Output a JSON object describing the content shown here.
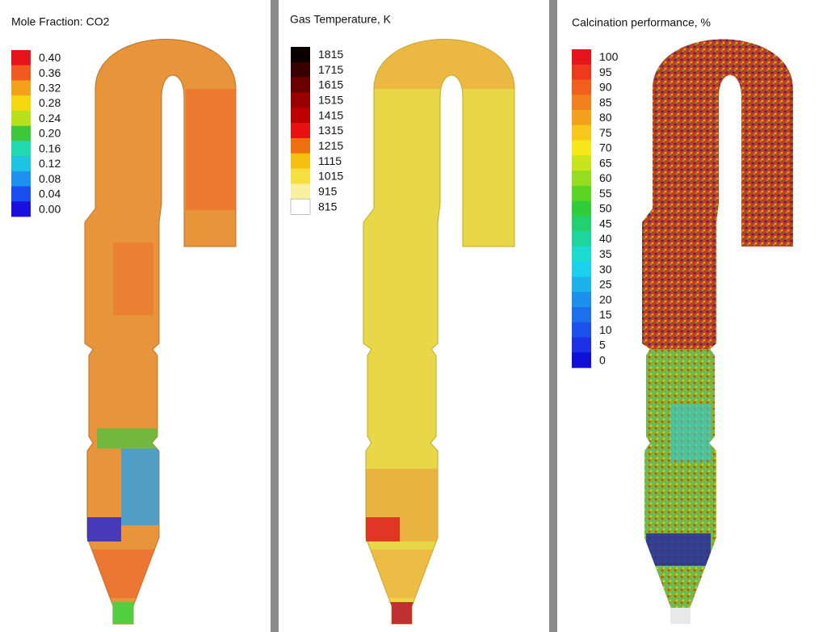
{
  "panels": [
    {
      "title": "Mole Fraction: CO2",
      "legend": [
        {
          "label": "0.40",
          "color": "#e8141c"
        },
        {
          "label": "0.36",
          "color": "#f05a1e"
        },
        {
          "label": "0.32",
          "color": "#f3a01d"
        },
        {
          "label": "0.28",
          "color": "#f5d80f"
        },
        {
          "label": "0.24",
          "color": "#b8e01c"
        },
        {
          "label": "0.20",
          "color": "#3cc83c"
        },
        {
          "label": "0.16",
          "color": "#22d8b0"
        },
        {
          "label": "0.12",
          "color": "#1cc4e4"
        },
        {
          "label": "0.08",
          "color": "#1e90f0"
        },
        {
          "label": "0.04",
          "color": "#1a4ef0"
        },
        {
          "label": "0.00",
          "color": "#1a10e0"
        }
      ]
    },
    {
      "title": "Gas Temperature, K",
      "legend": [
        {
          "label": "1815",
          "color": "#0a0000"
        },
        {
          "label": "1715",
          "color": "#3a0000"
        },
        {
          "label": "1615",
          "color": "#6a0000"
        },
        {
          "label": "1515",
          "color": "#9a0000"
        },
        {
          "label": "1415",
          "color": "#c00000"
        },
        {
          "label": "1315",
          "color": "#e81010"
        },
        {
          "label": "1215",
          "color": "#f07010"
        },
        {
          "label": "1115",
          "color": "#f5c010"
        },
        {
          "label": "1015",
          "color": "#f5e040"
        },
        {
          "label": "915",
          "color": "#f8f0a0"
        },
        {
          "label": "815",
          "color": "#ffffff"
        }
      ]
    },
    {
      "title": "Calcination performance, %",
      "legend": [
        {
          "label": "100",
          "color": "#e8141c"
        },
        {
          "label": "95",
          "color": "#ee3a1c"
        },
        {
          "label": "90",
          "color": "#f0601c"
        },
        {
          "label": "85",
          "color": "#f2801c"
        },
        {
          "label": "80",
          "color": "#f4a01c"
        },
        {
          "label": "75",
          "color": "#f6c81a"
        },
        {
          "label": "70",
          "color": "#f6e818"
        },
        {
          "label": "65",
          "color": "#c8e41c"
        },
        {
          "label": "60",
          "color": "#96dc20"
        },
        {
          "label": "55",
          "color": "#5cd424"
        },
        {
          "label": "50",
          "color": "#30cc3c"
        },
        {
          "label": "45",
          "color": "#22d070"
        },
        {
          "label": "40",
          "color": "#20d4a0"
        },
        {
          "label": "35",
          "color": "#1cdcd0"
        },
        {
          "label": "30",
          "color": "#1cd0ec"
        },
        {
          "label": "25",
          "color": "#1cb0ec"
        },
        {
          "label": "20",
          "color": "#1c90ec"
        },
        {
          "label": "15",
          "color": "#1c70ec"
        },
        {
          "label": "10",
          "color": "#1c50ec"
        },
        {
          "label": "5",
          "color": "#1c30e4"
        },
        {
          "label": "0",
          "color": "#1010d8"
        }
      ]
    }
  ]
}
